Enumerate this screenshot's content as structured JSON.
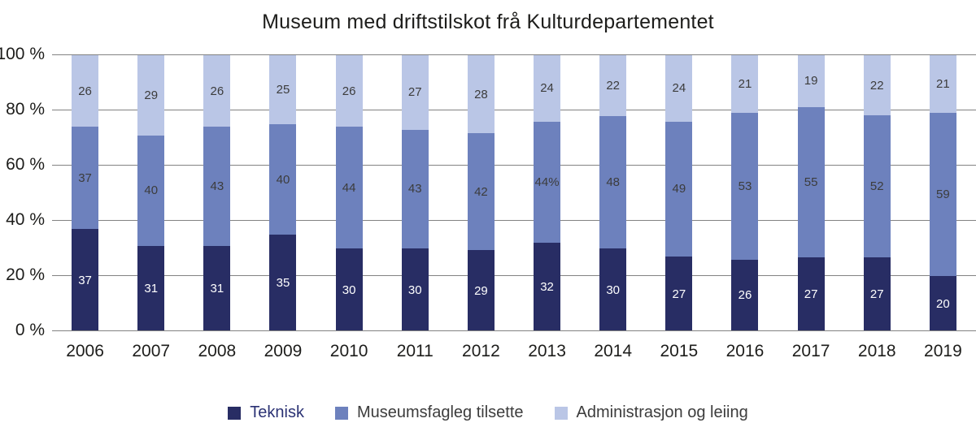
{
  "chart_data": {
    "type": "bar",
    "stacked": true,
    "title": "Museum med driftstilskot frå Kulturdepartementet",
    "categories": [
      "2006",
      "2007",
      "2008",
      "2009",
      "2010",
      "2011",
      "2012",
      "2013",
      "2014",
      "2015",
      "2016",
      "2017",
      "2018",
      "2019"
    ],
    "series": [
      {
        "name": "Teknisk",
        "color": "#282d64",
        "label_color": "#ffffff",
        "legend_text_color": "#2b3274",
        "values": [
          37,
          31,
          31,
          35,
          30,
          30,
          29,
          32,
          30,
          27,
          26,
          27,
          27,
          20
        ],
        "labels": [
          "37",
          "31",
          "31",
          "35",
          "30",
          "30",
          "29",
          "32",
          "30",
          "27",
          "26",
          "27",
          "27",
          "20"
        ]
      },
      {
        "name": "Museumsfagleg tilsette",
        "color": "#6d81bd",
        "label_color": "#3c3c3c",
        "legend_text_color": "#3c3c3c",
        "values": [
          37,
          40,
          43,
          40,
          44,
          43,
          42,
          44,
          48,
          49,
          53,
          55,
          52,
          59
        ],
        "labels": [
          "37",
          "40",
          "43",
          "40",
          "44",
          "43",
          "42",
          "44%",
          "48",
          "49",
          "53",
          "55",
          "52",
          "59"
        ]
      },
      {
        "name": "Administrasjon og leiing",
        "color": "#bac6e6",
        "label_color": "#3c3c3c",
        "legend_text_color": "#3c3c3c",
        "values": [
          26,
          29,
          26,
          25,
          26,
          27,
          28,
          24,
          22,
          24,
          21,
          19,
          22,
          21
        ],
        "labels": [
          "26",
          "29",
          "26",
          "25",
          "26",
          "27",
          "28",
          "24",
          "22",
          "24",
          "21",
          "19",
          "22",
          "21"
        ]
      }
    ],
    "y_ticks": [
      "0 %",
      "20 %",
      "40 %",
      "60 %",
      "80 %",
      "100 %"
    ],
    "ylim": [
      0,
      100
    ],
    "grid": true,
    "legend_position": "bottom"
  },
  "colors": {
    "grid": "#828282",
    "text": "#1d1d1b",
    "background": "#ffffff"
  }
}
